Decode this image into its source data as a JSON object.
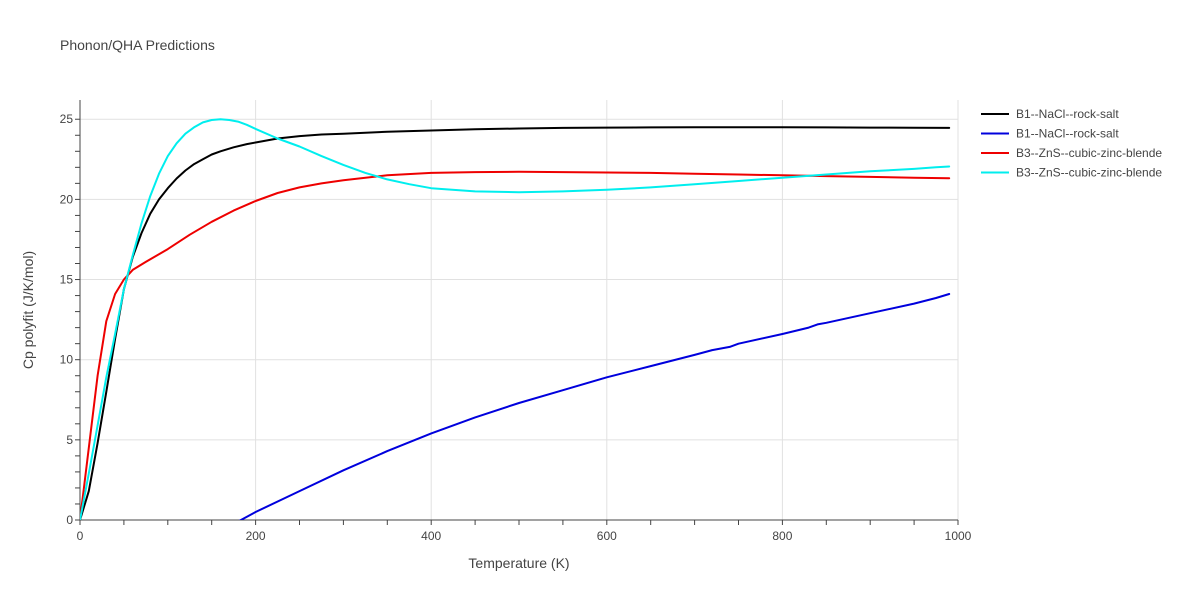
{
  "chart_data": {
    "type": "line",
    "title": "Phonon/QHA Predictions",
    "xlabel": "Temperature (K)",
    "ylabel": "Cp polyfit (J/K/mol)",
    "xlim": [
      0,
      1000
    ],
    "ylim": [
      0,
      26.2
    ],
    "xticks": [
      0,
      200,
      400,
      600,
      800,
      1000
    ],
    "yticks": [
      0,
      5,
      10,
      15,
      20,
      25
    ],
    "grid": true,
    "legend_position": "top-right",
    "series": [
      {
        "name": "B1--NaCl--rock-salt",
        "color": "#000000",
        "x": [
          0,
          10,
          20,
          30,
          40,
          50,
          60,
          70,
          80,
          90,
          100,
          110,
          120,
          130,
          140,
          150,
          160,
          175,
          190,
          200,
          225,
          250,
          275,
          300,
          350,
          400,
          450,
          500,
          550,
          600,
          650,
          700,
          750,
          800,
          850,
          900,
          950,
          990
        ],
        "y": [
          0,
          1.8,
          4.8,
          8.0,
          11.3,
          14.4,
          16.4,
          17.9,
          19.1,
          20.0,
          20.7,
          21.3,
          21.8,
          22.2,
          22.5,
          22.8,
          23.0,
          23.25,
          23.45,
          23.55,
          23.8,
          23.95,
          24.05,
          24.1,
          24.22,
          24.3,
          24.37,
          24.42,
          24.46,
          24.48,
          24.49,
          24.5,
          24.5,
          24.5,
          24.49,
          24.48,
          24.47,
          24.46
        ]
      },
      {
        "name": "B1--NaCl--rock-salt",
        "color": "#0000dd",
        "x": [
          175,
          200,
          250,
          300,
          350,
          400,
          450,
          500,
          550,
          600,
          650,
          700,
          720,
          740,
          750,
          800,
          830,
          840,
          850,
          900,
          950,
          975,
          990
        ],
        "y": [
          -0.25,
          0.5,
          1.8,
          3.1,
          4.3,
          5.4,
          6.4,
          7.3,
          8.1,
          8.9,
          9.6,
          10.3,
          10.6,
          10.8,
          11.0,
          11.6,
          12.0,
          12.2,
          12.3,
          12.9,
          13.5,
          13.85,
          14.1
        ]
      },
      {
        "name": "B3--ZnS--cubic-zinc-blende",
        "color": "#ee0000",
        "x": [
          0,
          10,
          20,
          30,
          40,
          50,
          60,
          75,
          100,
          125,
          150,
          175,
          200,
          225,
          250,
          275,
          300,
          350,
          400,
          450,
          500,
          550,
          600,
          650,
          700,
          750,
          800,
          850,
          900,
          950,
          990
        ],
        "y": [
          0,
          4.5,
          9.0,
          12.4,
          14.1,
          15.0,
          15.6,
          16.1,
          16.9,
          17.8,
          18.6,
          19.3,
          19.9,
          20.4,
          20.75,
          21.0,
          21.2,
          21.5,
          21.65,
          21.7,
          21.72,
          21.7,
          21.68,
          21.65,
          21.6,
          21.55,
          21.5,
          21.45,
          21.4,
          21.35,
          21.32
        ]
      },
      {
        "name": "B3--ZnS--cubic-zinc-blende",
        "color": "#00eeee",
        "x": [
          0,
          10,
          20,
          30,
          40,
          50,
          60,
          70,
          80,
          90,
          100,
          110,
          120,
          130,
          140,
          150,
          160,
          170,
          180,
          190,
          200,
          225,
          250,
          275,
          300,
          325,
          350,
          375,
          400,
          450,
          500,
          550,
          600,
          650,
          700,
          750,
          800,
          850,
          900,
          950,
          975,
          990
        ],
        "y": [
          0,
          2.9,
          5.9,
          8.9,
          11.6,
          14.4,
          16.5,
          18.5,
          20.2,
          21.6,
          22.7,
          23.5,
          24.1,
          24.5,
          24.8,
          24.95,
          25.0,
          24.95,
          24.85,
          24.65,
          24.4,
          23.8,
          23.3,
          22.7,
          22.15,
          21.65,
          21.25,
          20.95,
          20.7,
          20.5,
          20.45,
          20.5,
          20.6,
          20.75,
          20.95,
          21.15,
          21.35,
          21.55,
          21.75,
          21.9,
          22.0,
          22.05
        ]
      }
    ]
  }
}
